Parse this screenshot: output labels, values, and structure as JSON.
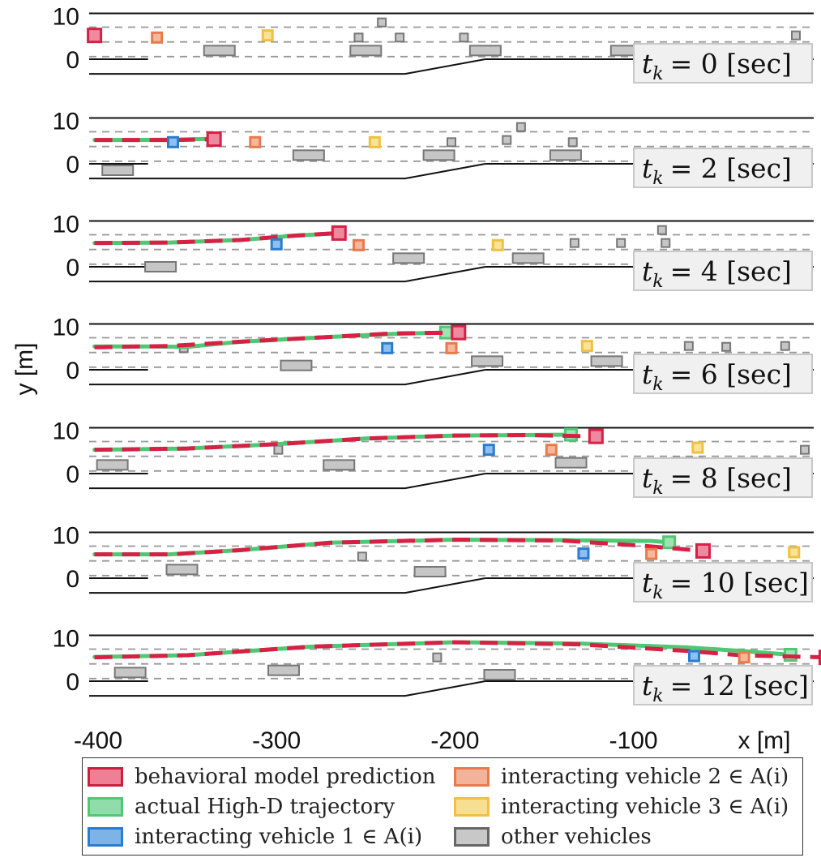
{
  "chart_data": {
    "type": "scatter",
    "ylabel": "y [m]",
    "xlabel": "x [m]",
    "xlim": [
      -405,
      1
    ],
    "ylim": [
      -6,
      12
    ],
    "xticks": [
      -400,
      -300,
      -200,
      -100
    ],
    "xtick_labels": [
      "-400",
      "-300",
      "-200",
      "-100"
    ],
    "yticks": [
      10,
      0
    ],
    "ytick_labels": [
      "10",
      "0"
    ],
    "colors": {
      "prediction": "#d62045",
      "actual": "#4fc873",
      "iv1": "#2b7bd0",
      "iv2": "#e97a4d",
      "iv3": "#f0c040",
      "other": "#9a9a9a"
    },
    "legend": [
      {
        "key": "prediction",
        "label": "behavioral model prediction"
      },
      {
        "key": "iv2",
        "label": "interacting vehicle 2 ∈ A(i)"
      },
      {
        "key": "actual",
        "label": "actual High-D trajectory"
      },
      {
        "key": "iv3",
        "label": "interacting vehicle 3 ∈ A(i)"
      },
      {
        "key": "iv1",
        "label": "interacting vehicle 1 ∈ A(i)"
      },
      {
        "key": "other",
        "label": "other vehicles"
      }
    ],
    "panels": [
      {
        "t_label": "t",
        "t_sub": "k",
        "t_value": "= 0 [sec]",
        "ego": [
          -402,
          5.5
        ],
        "prediction": [],
        "actual": [],
        "iv1": [],
        "iv2": [
          [
            -367,
            5
          ]
        ],
        "iv3": [
          [
            -305,
            5.5
          ]
        ],
        "others": [
          [
            -332,
            2
          ],
          [
            -250,
            2
          ],
          [
            -254,
            5
          ],
          [
            -241,
            8.5
          ],
          [
            -231,
            5
          ],
          [
            -195,
            5
          ],
          [
            -183,
            2
          ],
          [
            -104,
            2
          ],
          [
            -13,
            2
          ],
          [
            -9,
            5.5
          ]
        ]
      },
      {
        "t_label": "t",
        "t_sub": "k",
        "t_value": "= 2 [sec]",
        "ego": [
          -335,
          5.7
        ],
        "prediction": [
          [
            -402,
            5.5
          ],
          [
            -380,
            5.5
          ],
          [
            -355,
            5.5
          ],
          [
            -335,
            5.7
          ]
        ],
        "actual": [
          [
            -402,
            5.5
          ],
          [
            -380,
            5.5
          ],
          [
            -355,
            5.6
          ],
          [
            -335,
            5.8
          ]
        ],
        "iv1": [
          [
            -358,
            5
          ]
        ],
        "iv2": [
          [
            -312,
            5
          ]
        ],
        "iv3": [
          [
            -245,
            5
          ]
        ],
        "others": [
          [
            -389,
            -1.5
          ],
          [
            -282,
            2
          ],
          [
            -209,
            2
          ],
          [
            -202,
            5
          ],
          [
            -171,
            5.5
          ],
          [
            -163,
            8.5
          ],
          [
            -138,
            2
          ],
          [
            -134,
            5
          ],
          [
            -82,
            2
          ]
        ]
      },
      {
        "t_label": "t",
        "t_sub": "k",
        "t_value": "= 4 [sec]",
        "ego": [
          -265,
          7.8
        ],
        "prediction": [
          [
            -402,
            5.5
          ],
          [
            -360,
            5.6
          ],
          [
            -320,
            6.2
          ],
          [
            -290,
            7.2
          ],
          [
            -265,
            7.8
          ]
        ],
        "actual": [
          [
            -402,
            5.5
          ],
          [
            -360,
            5.6
          ],
          [
            -320,
            6.2
          ],
          [
            -290,
            7.2
          ],
          [
            -265,
            7.8
          ]
        ],
        "iv1": [
          [
            -300,
            5.2
          ]
        ],
        "iv2": [
          [
            -254,
            5
          ]
        ],
        "iv3": [
          [
            -176,
            5
          ]
        ],
        "others": [
          [
            -365,
            0
          ],
          [
            -226,
            2
          ],
          [
            -159,
            2
          ],
          [
            -133,
            5.5
          ],
          [
            -107,
            5.5
          ],
          [
            -88,
            2
          ],
          [
            -82,
            5.5
          ],
          [
            -84,
            8.5
          ],
          [
            -12,
            2
          ]
        ]
      },
      {
        "t_label": "t",
        "t_sub": "k",
        "t_value": "= 6 [sec]",
        "ego": [
          -198,
          8.6
        ],
        "prediction": [
          [
            -402,
            5.2
          ],
          [
            -360,
            5.5
          ],
          [
            -320,
            6.5
          ],
          [
            -270,
            7.6
          ],
          [
            -235,
            8.4
          ],
          [
            -198,
            8.6
          ]
        ],
        "actual": [
          [
            -402,
            5.4
          ],
          [
            -370,
            5.4
          ],
          [
            -350,
            5.3
          ],
          [
            -320,
            6.5
          ],
          [
            -270,
            7.6
          ],
          [
            -235,
            8.3
          ],
          [
            -205,
            8.6
          ]
        ],
        "iv1": [
          [
            -238,
            5
          ]
        ],
        "iv2": [
          [
            -202,
            5
          ]
        ],
        "iv3": [
          [
            -126,
            5.5
          ]
        ],
        "others": [
          [
            -352,
            5
          ],
          [
            -289,
            1
          ],
          [
            -182,
            2
          ],
          [
            -115,
            2
          ],
          [
            -69,
            5.5
          ],
          [
            -48,
            5.3
          ],
          [
            -45,
            2
          ],
          [
            -15,
            5.5
          ]
        ]
      },
      {
        "t_label": "t",
        "t_sub": "k",
        "t_value": "= 8 [sec]",
        "ego": [
          -121,
          8.6
        ],
        "prediction": [
          [
            -402,
            5.5
          ],
          [
            -350,
            5.8
          ],
          [
            -300,
            6.8
          ],
          [
            -250,
            8.1
          ],
          [
            -200,
            8.8
          ],
          [
            -160,
            8.9
          ],
          [
            -121,
            8.6
          ]
        ],
        "actual": [
          [
            -402,
            5.5
          ],
          [
            -350,
            5.8
          ],
          [
            -300,
            6.8
          ],
          [
            -250,
            8.1
          ],
          [
            -200,
            8.8
          ],
          [
            -160,
            8.9
          ],
          [
            -135,
            9
          ]
        ],
        "iv1": [
          [
            -181,
            5.5
          ]
        ],
        "iv2": [
          [
            -146,
            5.5
          ]
        ],
        "iv3": [
          [
            -64,
            6
          ]
        ],
        "others": [
          [
            -392,
            2
          ],
          [
            -299,
            5.5
          ],
          [
            -265,
            2
          ],
          [
            -135,
            2.5
          ],
          [
            -70,
            2.5
          ],
          [
            -4,
            5.5
          ]
        ]
      },
      {
        "t_label": "t",
        "t_sub": "k",
        "t_value": "= 10 [sec]",
        "ego": [
          -61,
          6.3
        ],
        "prediction": [
          [
            -402,
            5.5
          ],
          [
            -360,
            5.5
          ],
          [
            -320,
            6.5
          ],
          [
            -270,
            8.2
          ],
          [
            -200,
            8.9
          ],
          [
            -140,
            8.7
          ],
          [
            -95,
            7.5
          ],
          [
            -61,
            6.3
          ]
        ],
        "actual": [
          [
            -402,
            5.5
          ],
          [
            -360,
            5.5
          ],
          [
            -320,
            6.5
          ],
          [
            -270,
            8.2
          ],
          [
            -200,
            8.9
          ],
          [
            -140,
            8.8
          ],
          [
            -90,
            8.6
          ],
          [
            -80,
            8.3
          ]
        ],
        "iv1": [
          [
            -128,
            5.7
          ]
        ],
        "iv2": [
          [
            -90,
            5.6
          ]
        ],
        "iv3": [
          [
            -10,
            6
          ]
        ],
        "others": [
          [
            -353,
            2
          ],
          [
            -252,
            5
          ],
          [
            -214,
            1.5
          ],
          [
            -78,
            2
          ],
          [
            -16,
            2
          ]
        ]
      },
      {
        "t_label": "t",
        "t_sub": "k",
        "t_value": "= 12 [sec]",
        "ego": [
          8,
          5.5
        ],
        "prediction": [
          [
            -402,
            5.5
          ],
          [
            -350,
            6
          ],
          [
            -280,
            8
          ],
          [
            -200,
            9
          ],
          [
            -130,
            8.5
          ],
          [
            -70,
            7
          ],
          [
            -40,
            6
          ],
          [
            8,
            5.5
          ]
        ],
        "actual": [
          [
            -402,
            5.6
          ],
          [
            -350,
            6
          ],
          [
            -280,
            8
          ],
          [
            -200,
            9
          ],
          [
            -130,
            8.7
          ],
          [
            -70,
            7.8
          ],
          [
            -40,
            7
          ],
          [
            -12,
            6.1
          ]
        ],
        "iv1": [
          [
            -66,
            5.8
          ]
        ],
        "iv2": [
          [
            -38,
            5.5
          ]
        ],
        "iv3": [],
        "others": [
          [
            -382,
            2
          ],
          [
            -296,
            2.5
          ],
          [
            -210,
            5.5
          ],
          [
            -175,
            1.5
          ],
          [
            -33,
            2
          ]
        ]
      }
    ]
  }
}
